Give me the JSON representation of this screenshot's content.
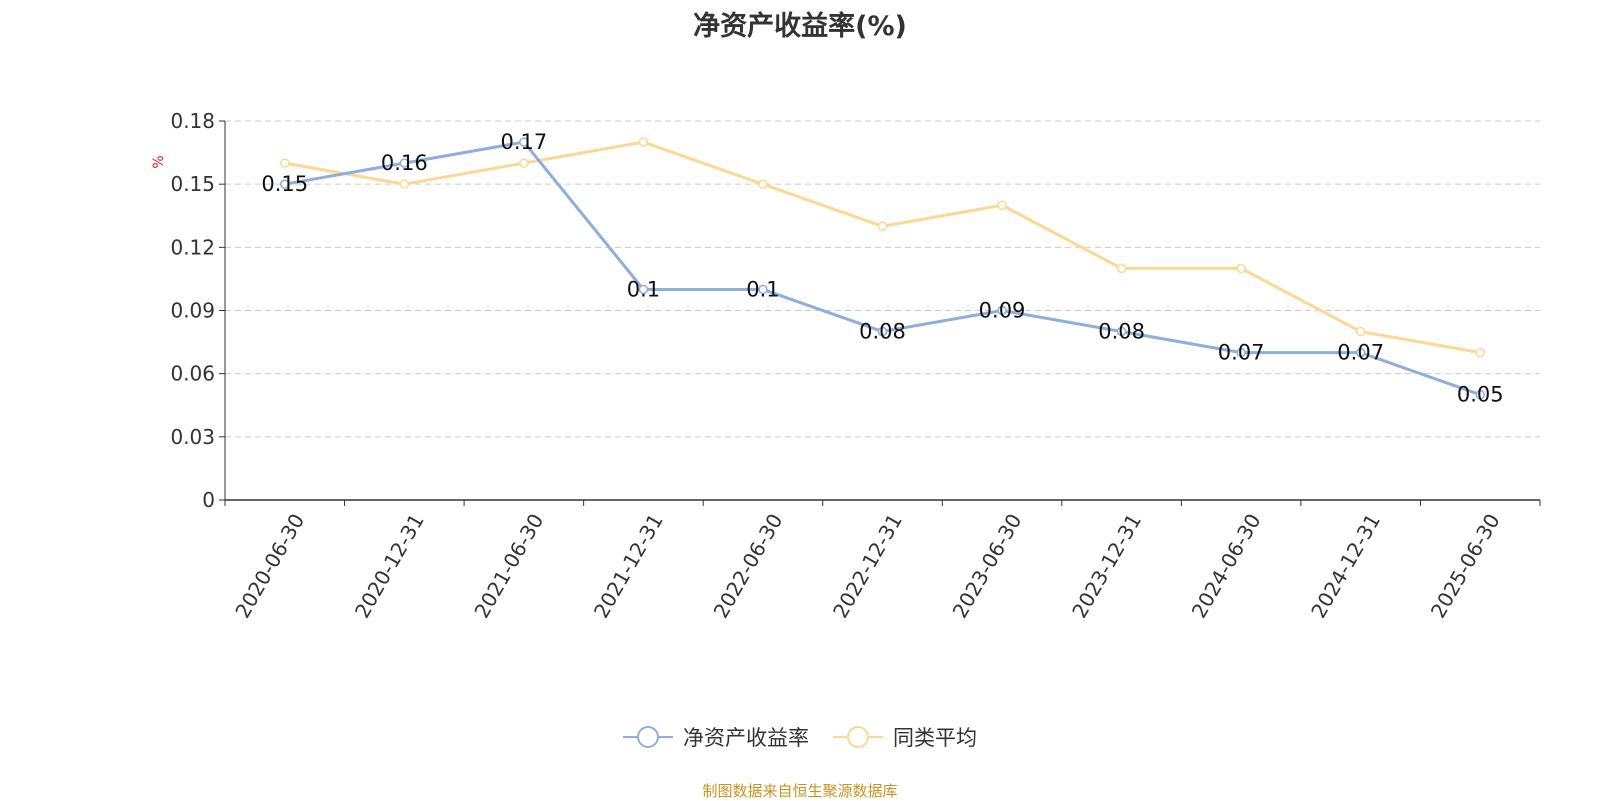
{
  "chart_data": {
    "type": "line",
    "title": "净资产收益率(%)",
    "ylabel": "%",
    "xlabel": "",
    "ylim": [
      0,
      0.18
    ],
    "yticks": [
      "0",
      "0.03",
      "0.06",
      "0.09",
      "0.12",
      "0.15",
      "0.18"
    ],
    "categories": [
      "2020-06-30",
      "2020-12-31",
      "2021-06-30",
      "2021-12-31",
      "2022-06-30",
      "2022-12-31",
      "2023-06-30",
      "2023-12-31",
      "2024-06-30",
      "2024-12-31",
      "2025-06-30"
    ],
    "series": [
      {
        "name": "净资产收益率",
        "color": "#8eaedb",
        "values": [
          0.15,
          0.16,
          0.17,
          0.1,
          0.1,
          0.08,
          0.09,
          0.08,
          0.07,
          0.07,
          0.05
        ],
        "data_labels": [
          "0.15",
          "0.16",
          "0.17",
          "0.1",
          "0.1",
          "0.08",
          "0.09",
          "0.08",
          "0.07",
          "0.07",
          "0.05"
        ]
      },
      {
        "name": "同类平均",
        "color": "#fdd894",
        "values": [
          0.16,
          0.15,
          0.16,
          0.17,
          0.15,
          0.13,
          0.14,
          0.11,
          0.11,
          0.08,
          0.07
        ]
      }
    ],
    "grid": true,
    "legend_position": "bottom"
  },
  "legend": {
    "item1": "净资产收益率",
    "item2": "同类平均"
  },
  "source_note": "制图数据来自恒生聚源数据库"
}
